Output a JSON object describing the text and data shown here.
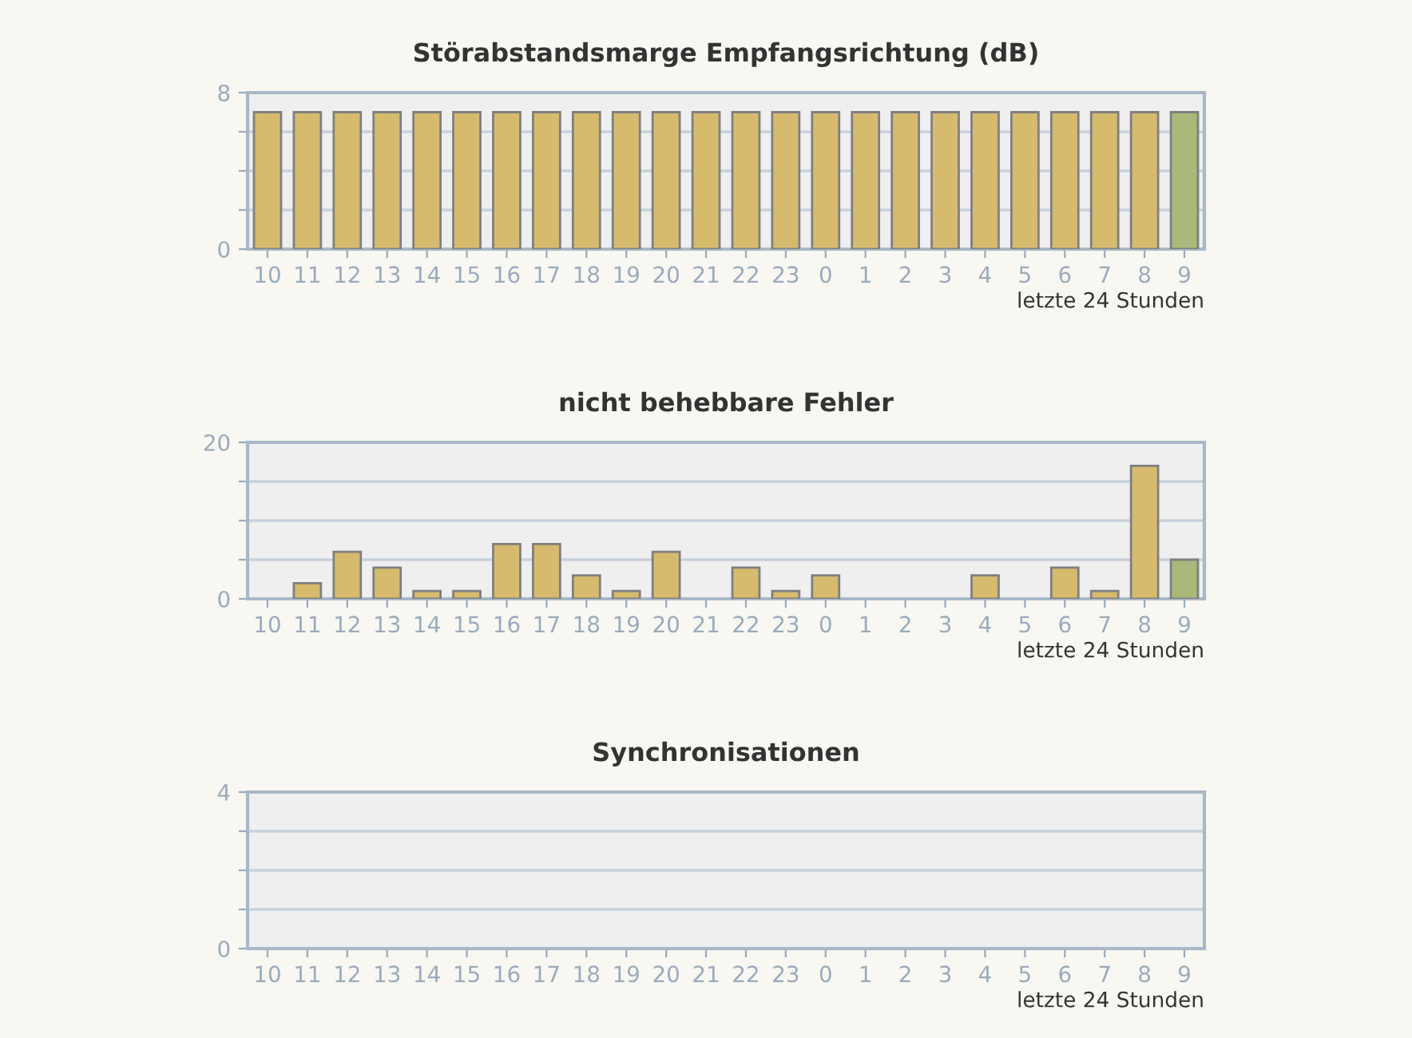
{
  "chart_data": [
    {
      "type": "bar",
      "title": "Störabstandsmarge Empfangsrichtung (dB)",
      "xlabel": "letzte 24 Stunden",
      "categories": [
        "10",
        "11",
        "12",
        "13",
        "14",
        "15",
        "16",
        "17",
        "18",
        "19",
        "20",
        "21",
        "22",
        "23",
        "0",
        "1",
        "2",
        "3",
        "4",
        "5",
        "6",
        "7",
        "8",
        "9"
      ],
      "values": [
        7,
        7,
        7,
        7,
        7,
        7,
        7,
        7,
        7,
        7,
        7,
        7,
        7,
        7,
        7,
        7,
        7,
        7,
        7,
        7,
        7,
        7,
        7,
        7
      ],
      "colors": [
        "#d6bb6e",
        "#d6bb6e",
        "#d6bb6e",
        "#d6bb6e",
        "#d6bb6e",
        "#d6bb6e",
        "#d6bb6e",
        "#d6bb6e",
        "#d6bb6e",
        "#d6bb6e",
        "#d6bb6e",
        "#d6bb6e",
        "#d6bb6e",
        "#d6bb6e",
        "#d6bb6e",
        "#d6bb6e",
        "#d6bb6e",
        "#d6bb6e",
        "#d6bb6e",
        "#d6bb6e",
        "#d6bb6e",
        "#d6bb6e",
        "#d6bb6e",
        "#a9b97c"
      ],
      "ylim": [
        0,
        8
      ],
      "yticks": [
        0,
        {
          "value": 2,
          "label": null
        },
        {
          "value": 4,
          "label": null
        },
        {
          "value": 6,
          "label": null
        },
        8
      ],
      "grid": "y"
    },
    {
      "type": "bar",
      "title": "nicht behebbare Fehler",
      "xlabel": "letzte 24 Stunden",
      "categories": [
        "10",
        "11",
        "12",
        "13",
        "14",
        "15",
        "16",
        "17",
        "18",
        "19",
        "20",
        "21",
        "22",
        "23",
        "0",
        "1",
        "2",
        "3",
        "4",
        "5",
        "6",
        "7",
        "8",
        "9"
      ],
      "values": [
        0,
        2,
        6,
        4,
        1,
        1,
        7,
        7,
        3,
        1,
        6,
        0,
        4,
        1,
        3,
        0,
        0,
        0,
        3,
        0,
        4,
        1,
        17,
        5
      ],
      "colors": [
        null,
        "#d6bb6e",
        "#d6bb6e",
        "#d6bb6e",
        "#d6bb6e",
        "#d6bb6e",
        "#d6bb6e",
        "#d6bb6e",
        "#d6bb6e",
        "#d6bb6e",
        "#d6bb6e",
        null,
        "#d6bb6e",
        "#d6bb6e",
        "#d6bb6e",
        null,
        null,
        null,
        "#d6bb6e",
        null,
        "#d6bb6e",
        "#d6bb6e",
        "#d6bb6e",
        "#a9b97c"
      ],
      "ylim": [
        0,
        20
      ],
      "yticks": [
        0,
        {
          "value": 5,
          "label": null
        },
        {
          "value": 10,
          "label": null
        },
        {
          "value": 15,
          "label": null
        },
        20
      ],
      "grid": "y"
    },
    {
      "type": "bar",
      "title": "Synchronisationen",
      "xlabel": "letzte 24 Stunden",
      "categories": [
        "10",
        "11",
        "12",
        "13",
        "14",
        "15",
        "16",
        "17",
        "18",
        "19",
        "20",
        "21",
        "22",
        "23",
        "0",
        "1",
        "2",
        "3",
        "4",
        "5",
        "6",
        "7",
        "8",
        "9"
      ],
      "values": [
        0,
        0,
        0,
        0,
        0,
        0,
        0,
        0,
        0,
        0,
        0,
        0,
        0,
        0,
        0,
        0,
        0,
        0,
        0,
        0,
        0,
        0,
        0,
        0
      ],
      "ylim": [
        0,
        4
      ],
      "yticks": [
        0,
        {
          "value": 1,
          "label": null
        },
        {
          "value": 2,
          "label": null
        },
        {
          "value": 3,
          "label": null
        },
        4
      ],
      "grid": "y"
    }
  ]
}
